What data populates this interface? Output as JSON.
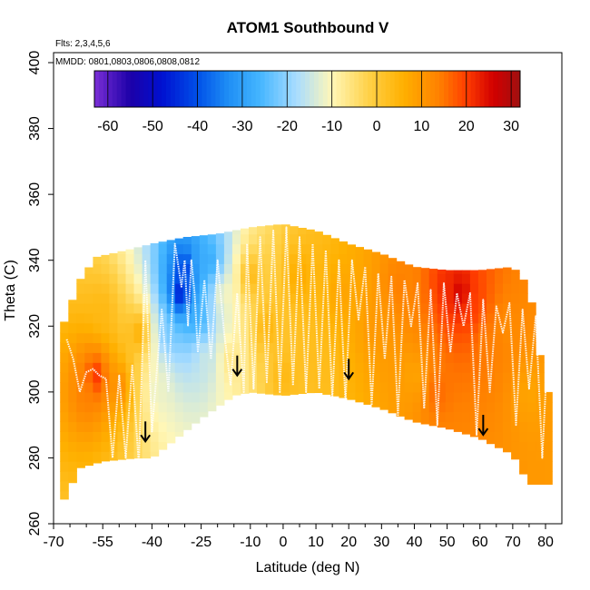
{
  "chart_data": {
    "type": "heatmap",
    "title": "ATOM1 Southbound V",
    "annotations": {
      "flights": "Flts: 2,3,4,5,6",
      "dates": "MMDD: 0801,0803,0806,0808,0812"
    },
    "xlabel": "Latitude (deg N)",
    "ylabel": "Theta (C)",
    "xlim": [
      -70,
      85
    ],
    "ylim": [
      260,
      405
    ],
    "x_ticks_major": [
      "-70",
      "-55",
      "-40",
      "-25",
      "-10",
      "0",
      "10",
      "20",
      "30",
      "40",
      "50",
      "60",
      "70",
      "80"
    ],
    "x_tick_values": [
      -70,
      -55,
      -40,
      -25,
      -10,
      0,
      10,
      20,
      30,
      40,
      50,
      60,
      70,
      80
    ],
    "x_minor_ticks": [
      -65,
      -60,
      -50,
      -45,
      -35,
      -30,
      -20,
      -15,
      -5,
      5,
      15,
      25,
      35,
      45,
      55,
      65,
      75
    ],
    "y_ticks": [
      "260",
      "280",
      "300",
      "320",
      "340",
      "360",
      "380",
      "400"
    ],
    "y_tick_values": [
      260,
      280,
      300,
      320,
      340,
      360,
      380,
      400
    ],
    "colorbar": {
      "min": -63,
      "max": 32,
      "tick_values": [
        -60,
        -50,
        -40,
        -30,
        -20,
        -10,
        0,
        10,
        20,
        30
      ],
      "tick_labels": [
        "-60",
        "-50",
        "-40",
        "-30",
        "-20",
        "-10",
        "0",
        "10",
        "20",
        "30"
      ],
      "colors": [
        "#7b2fd6",
        "#1c00a8",
        "#0010d0",
        "#0050e8",
        "#1f8ff5",
        "#45b6ff",
        "#a8dcff",
        "#fff7b8",
        "#ffd24a",
        "#ffb000",
        "#ff8000",
        "#ff3d00",
        "#d20000",
        "#a01010"
      ],
      "color_values": [
        -63,
        -55,
        -48,
        -40,
        -33,
        -26,
        -18,
        -10,
        -2,
        6,
        14,
        20,
        26,
        32
      ]
    },
    "boundary_lower": [
      [
        -68,
        265
      ],
      [
        -62,
        277
      ],
      [
        -55,
        279
      ],
      [
        -45,
        280
      ],
      [
        -40,
        280
      ],
      [
        -25,
        292
      ],
      [
        -15,
        299
      ],
      [
        -10,
        300
      ],
      [
        0,
        299
      ],
      [
        10,
        300
      ],
      [
        20,
        298
      ],
      [
        30,
        295
      ],
      [
        40,
        291
      ],
      [
        50,
        289
      ],
      [
        60,
        286
      ],
      [
        70,
        281
      ],
      [
        75,
        272
      ],
      [
        80,
        272
      ]
    ],
    "boundary_upper": [
      [
        -68,
        318
      ],
      [
        -62,
        334
      ],
      [
        -57,
        341
      ],
      [
        -48,
        343
      ],
      [
        -40,
        345
      ],
      [
        -30,
        347
      ],
      [
        -20,
        348
      ],
      [
        -10,
        350
      ],
      [
        0,
        351
      ],
      [
        10,
        349
      ],
      [
        20,
        345
      ],
      [
        30,
        342
      ],
      [
        40,
        338
      ],
      [
        50,
        337
      ],
      [
        60,
        337
      ],
      [
        70,
        338
      ],
      [
        75,
        332
      ],
      [
        80,
        300
      ]
    ],
    "field": [
      {
        "lat": -60,
        "theta": 300,
        "v": 14
      },
      {
        "lat": -57,
        "theta": 305,
        "v": 22
      },
      {
        "lat": -50,
        "theta": 302,
        "v": 12
      },
      {
        "lat": -44,
        "theta": 318,
        "v": 6
      },
      {
        "lat": -38,
        "theta": 300,
        "v": -12
      },
      {
        "lat": -35,
        "theta": 318,
        "v": -22
      },
      {
        "lat": -31,
        "theta": 330,
        "v": -50
      },
      {
        "lat": -30,
        "theta": 338,
        "v": -45
      },
      {
        "lat": -27,
        "theta": 340,
        "v": -30
      },
      {
        "lat": -26,
        "theta": 322,
        "v": -28
      },
      {
        "lat": -24,
        "theta": 310,
        "v": -15
      },
      {
        "lat": -22,
        "theta": 340,
        "v": -28
      },
      {
        "lat": -18,
        "theta": 330,
        "v": -10
      },
      {
        "lat": -16,
        "theta": 310,
        "v": -6
      },
      {
        "lat": -10,
        "theta": 335,
        "v": 4
      },
      {
        "lat": -5,
        "theta": 320,
        "v": 5
      },
      {
        "lat": 5,
        "theta": 335,
        "v": 7
      },
      {
        "lat": 10,
        "theta": 310,
        "v": 3
      },
      {
        "lat": 18,
        "theta": 330,
        "v": 8
      },
      {
        "lat": 28,
        "theta": 320,
        "v": 10
      },
      {
        "lat": 35,
        "theta": 332,
        "v": 14
      },
      {
        "lat": 40,
        "theta": 305,
        "v": 8
      },
      {
        "lat": 47,
        "theta": 300,
        "v": 16
      },
      {
        "lat": 50,
        "theta": 332,
        "v": 22
      },
      {
        "lat": 54,
        "theta": 330,
        "v": 27
      },
      {
        "lat": 58,
        "theta": 326,
        "v": 20
      },
      {
        "lat": 62,
        "theta": 315,
        "v": 14
      },
      {
        "lat": 68,
        "theta": 320,
        "v": 12
      },
      {
        "lat": 75,
        "theta": 300,
        "v": 8
      },
      {
        "lat": -55,
        "theta": 325,
        "v": 4
      },
      {
        "lat": 0,
        "theta": 305,
        "v": 4
      }
    ],
    "flight_track": [
      [
        -66,
        316
      ],
      [
        -64,
        310
      ],
      [
        -62,
        300
      ],
      [
        -60,
        306
      ],
      [
        -58,
        307
      ],
      [
        -56,
        305
      ],
      [
        -54,
        304
      ],
      [
        -52,
        280
      ],
      [
        -50,
        305
      ],
      [
        -48,
        280
      ],
      [
        -46,
        308
      ],
      [
        -44,
        278
      ],
      [
        -42,
        340
      ],
      [
        -40,
        288
      ],
      [
        -37,
        325
      ],
      [
        -35,
        300
      ],
      [
        -33,
        345
      ],
      [
        -31,
        332
      ],
      [
        -30,
        340
      ],
      [
        -29,
        320
      ],
      [
        -28,
        340
      ],
      [
        -27,
        330
      ],
      [
        -26,
        312
      ],
      [
        -24,
        334
      ],
      [
        -22,
        310
      ],
      [
        -20,
        340
      ],
      [
        -18,
        318
      ],
      [
        -16,
        302
      ],
      [
        -14,
        330
      ],
      [
        -12,
        300
      ],
      [
        -11,
        345
      ],
      [
        -9,
        301
      ],
      [
        -7,
        347
      ],
      [
        -5,
        303
      ],
      [
        -3,
        349
      ],
      [
        -1,
        300
      ],
      [
        1,
        350
      ],
      [
        3,
        302
      ],
      [
        5,
        347
      ],
      [
        7,
        300
      ],
      [
        9,
        345
      ],
      [
        11,
        301
      ],
      [
        13,
        343
      ],
      [
        15,
        298
      ],
      [
        17,
        340
      ],
      [
        19,
        297
      ],
      [
        21,
        340
      ],
      [
        23,
        322
      ],
      [
        25,
        338
      ],
      [
        27,
        296
      ],
      [
        29,
        336
      ],
      [
        31,
        310
      ],
      [
        33,
        335
      ],
      [
        35,
        293
      ],
      [
        37,
        334
      ],
      [
        39,
        320
      ],
      [
        41,
        333
      ],
      [
        43,
        295
      ],
      [
        45,
        331
      ],
      [
        47,
        290
      ],
      [
        49,
        333
      ],
      [
        51,
        312
      ],
      [
        53,
        330
      ],
      [
        55,
        320
      ],
      [
        57,
        330
      ],
      [
        59,
        287
      ],
      [
        61,
        328
      ],
      [
        63,
        300
      ],
      [
        65,
        326
      ],
      [
        67,
        318
      ],
      [
        69,
        327
      ],
      [
        71,
        290
      ],
      [
        73,
        325
      ],
      [
        75,
        301
      ],
      [
        77,
        323
      ],
      [
        79,
        280
      ],
      [
        80,
        300
      ]
    ],
    "arrows": [
      [
        -42,
        285
      ],
      [
        -14,
        305
      ],
      [
        20,
        304
      ],
      [
        61,
        287
      ]
    ]
  }
}
